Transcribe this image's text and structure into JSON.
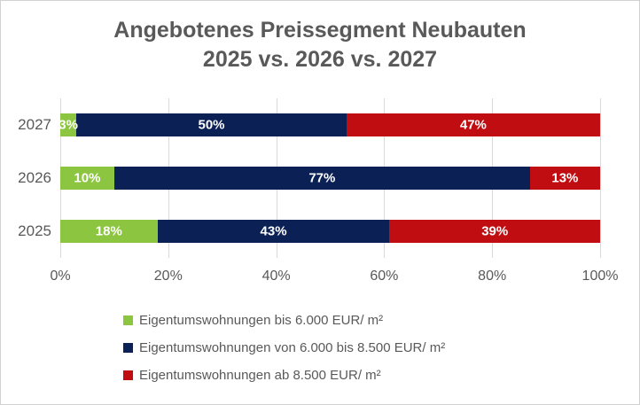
{
  "title": {
    "line1": "Angebotenes Preissegment Neubauten",
    "line2": "2025 vs. 2026 vs. 2027"
  },
  "colors": {
    "green": "#8cc540",
    "navy": "#0b2156",
    "red": "#c00d12",
    "title_text": "#595959",
    "axis_text": "#595959",
    "gridline": "#d9d9d9",
    "data_label_text": "#ffffff",
    "border": "#d2d2d2",
    "background": "#ffffff"
  },
  "chart_data": {
    "type": "bar",
    "orientation": "horizontal-stacked",
    "title": "Angebotenes Preissegment Neubauten 2025 vs. 2026 vs. 2027",
    "categories": [
      "2027",
      "2026",
      "2025"
    ],
    "series": [
      {
        "name": "Eigentumswohnungen bis 6.000 EUR/ m²",
        "color_key": "green",
        "values": [
          3,
          10,
          18
        ]
      },
      {
        "name": "Eigentumswohnungen von 6.000 bis 8.500 EUR/ m²",
        "color_key": "navy",
        "values": [
          50,
          77,
          43
        ]
      },
      {
        "name": "Eigentumswohnungen ab 8.500 EUR/ m²",
        "color_key": "red",
        "values": [
          47,
          13,
          39
        ]
      }
    ],
    "x_ticks": [
      "0%",
      "20%",
      "40%",
      "60%",
      "80%",
      "100%"
    ],
    "xlim": [
      0,
      100
    ],
    "grid": "vertical",
    "data_label_format": "{v}%",
    "legend_position": "bottom-left"
  }
}
